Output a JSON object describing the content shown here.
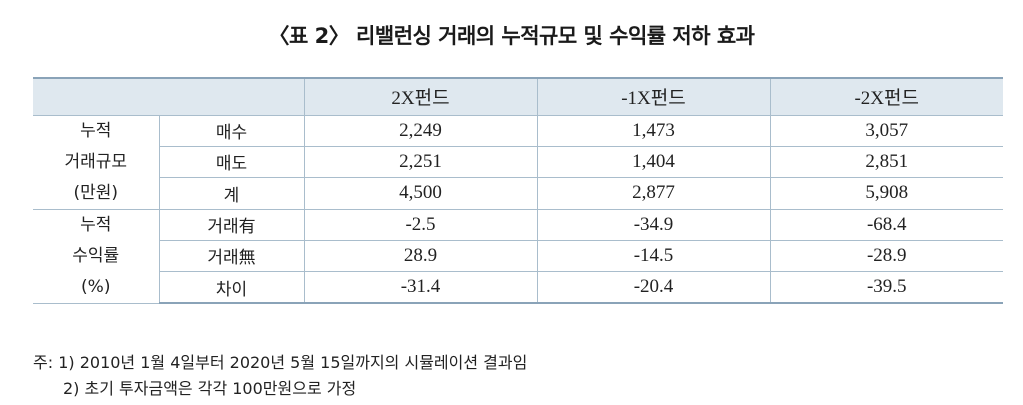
{
  "title": "〈표 2〉 리밸런싱 거래의 누적규모 및 수익률 저하 효과",
  "table": {
    "headers": [
      "",
      "2X펀드",
      "-1X펀드",
      "-2X펀드"
    ],
    "groups": [
      {
        "label_lines": [
          "누적",
          "거래규모",
          "(만원)"
        ],
        "rows": [
          {
            "label": "매수",
            "values": [
              "2,249",
              "1,473",
              "3,057"
            ]
          },
          {
            "label": "매도",
            "values": [
              "2,251",
              "1,404",
              "2,851"
            ]
          },
          {
            "label": "계",
            "values": [
              "4,500",
              "2,877",
              "5,908"
            ]
          }
        ]
      },
      {
        "label_lines": [
          "누적",
          "수익률",
          "(%)"
        ],
        "rows": [
          {
            "label": "거래有",
            "values": [
              "-2.5",
              "-34.9",
              "-68.4"
            ]
          },
          {
            "label": "거래無",
            "values": [
              "28.9",
              "-14.5",
              "-28.9"
            ]
          },
          {
            "label": "차이",
            "values": [
              "-31.4",
              "-20.4",
              "-39.5"
            ]
          }
        ]
      }
    ]
  },
  "notes": [
    "주: 1) 2010년 1월 4일부터 2020년 5월 15일까지의 시뮬레이션 결과임",
    "2) 초기 투자금액은 각각 100만원으로 가정"
  ],
  "colors": {
    "header_bg": "#dfe8ef",
    "border": "#a9bdcc"
  }
}
